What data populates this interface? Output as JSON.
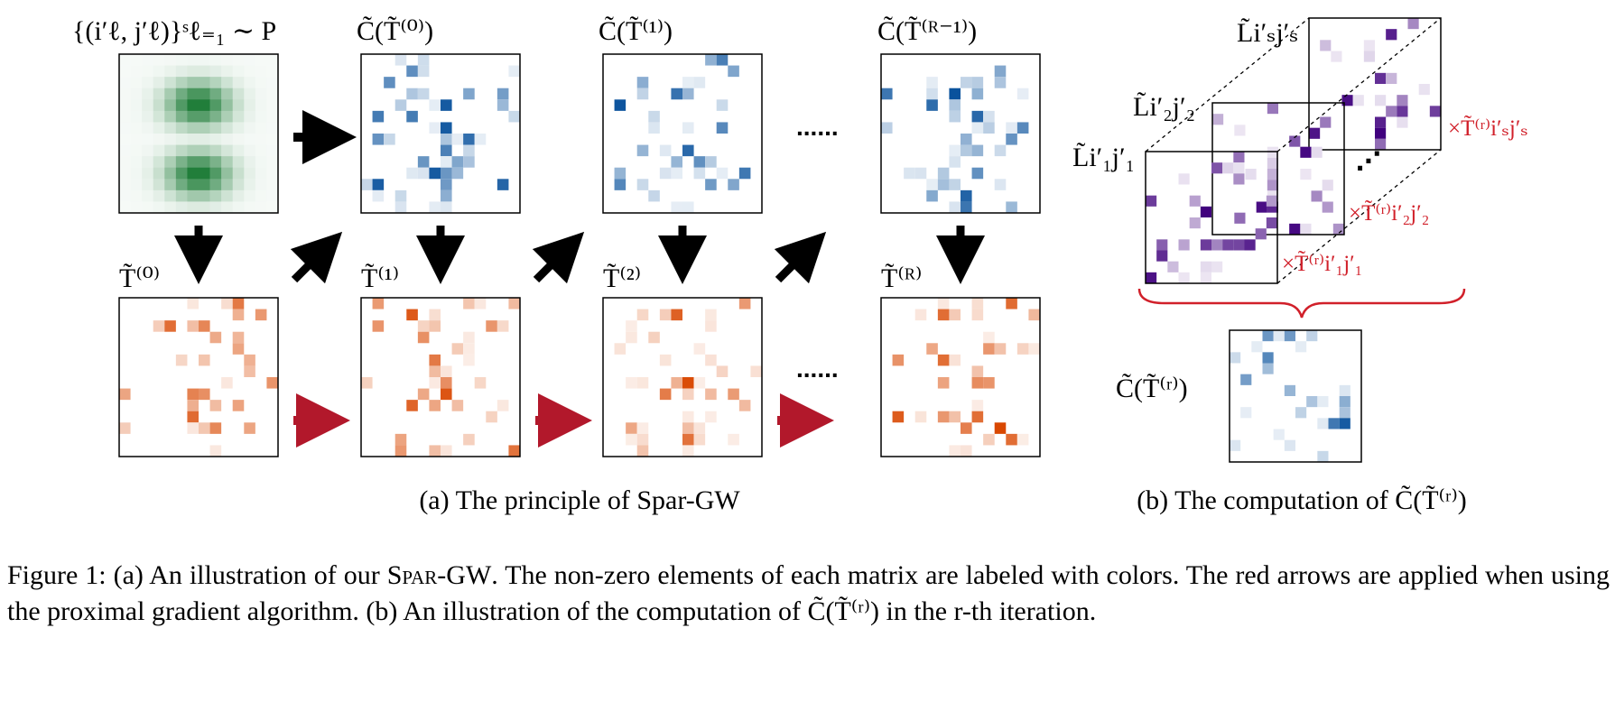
{
  "panel_a": {
    "sample_label": "{(i′ℓ, j′ℓ)}ˢℓ₌₁ ∼ P",
    "top_labels": [
      "C̃(T̃⁽⁰⁾)",
      "C̃(T̃⁽¹⁾)",
      "C̃(T̃⁽ᴿ⁻¹⁾)"
    ],
    "bottom_labels": [
      "T̃⁽⁰⁾",
      "T̃⁽¹⁾",
      "T̃⁽²⁾",
      "T̃⁽ᴿ⁾"
    ],
    "ellipsis": "......",
    "subcaption": "(a) The principle of Spar-GW"
  },
  "panel_b": {
    "l_labels": [
      "L̃i′ₛj′ₛ",
      "L̃i′₂j′₂",
      "L̃i′₁j′₁"
    ],
    "weight_labels": [
      "×T̃⁽ʳ⁾i′ₛj′ₛ",
      "×T̃⁽ʳ⁾i′₂j′₂",
      "×T̃⁽ʳ⁾i′₁j′₁"
    ],
    "ellipsis": "⋰",
    "result_label": "C̃(T̃⁽ʳ⁾)",
    "subcaption": "(b) The computation of C̃(T̃⁽ʳ⁾)"
  },
  "colors": {
    "green": "#1a7a34",
    "blue": "#08519c",
    "orange": "#d94801",
    "purple": "#3f007d",
    "red": "#d1202a",
    "arrow_red": "#b2182b"
  },
  "caption": {
    "label": "Figure 1:",
    "text_1": "(a) An illustration of our",
    "method": "Spar-GW",
    "text_2": ". The non-zero elements of each matrix are labeled with colors. The red arrows are applied when using the proximal gradient algorithm. (b) An illustration of the computation of C̃(T̃⁽ʳ⁾) in the r-th iteration."
  }
}
